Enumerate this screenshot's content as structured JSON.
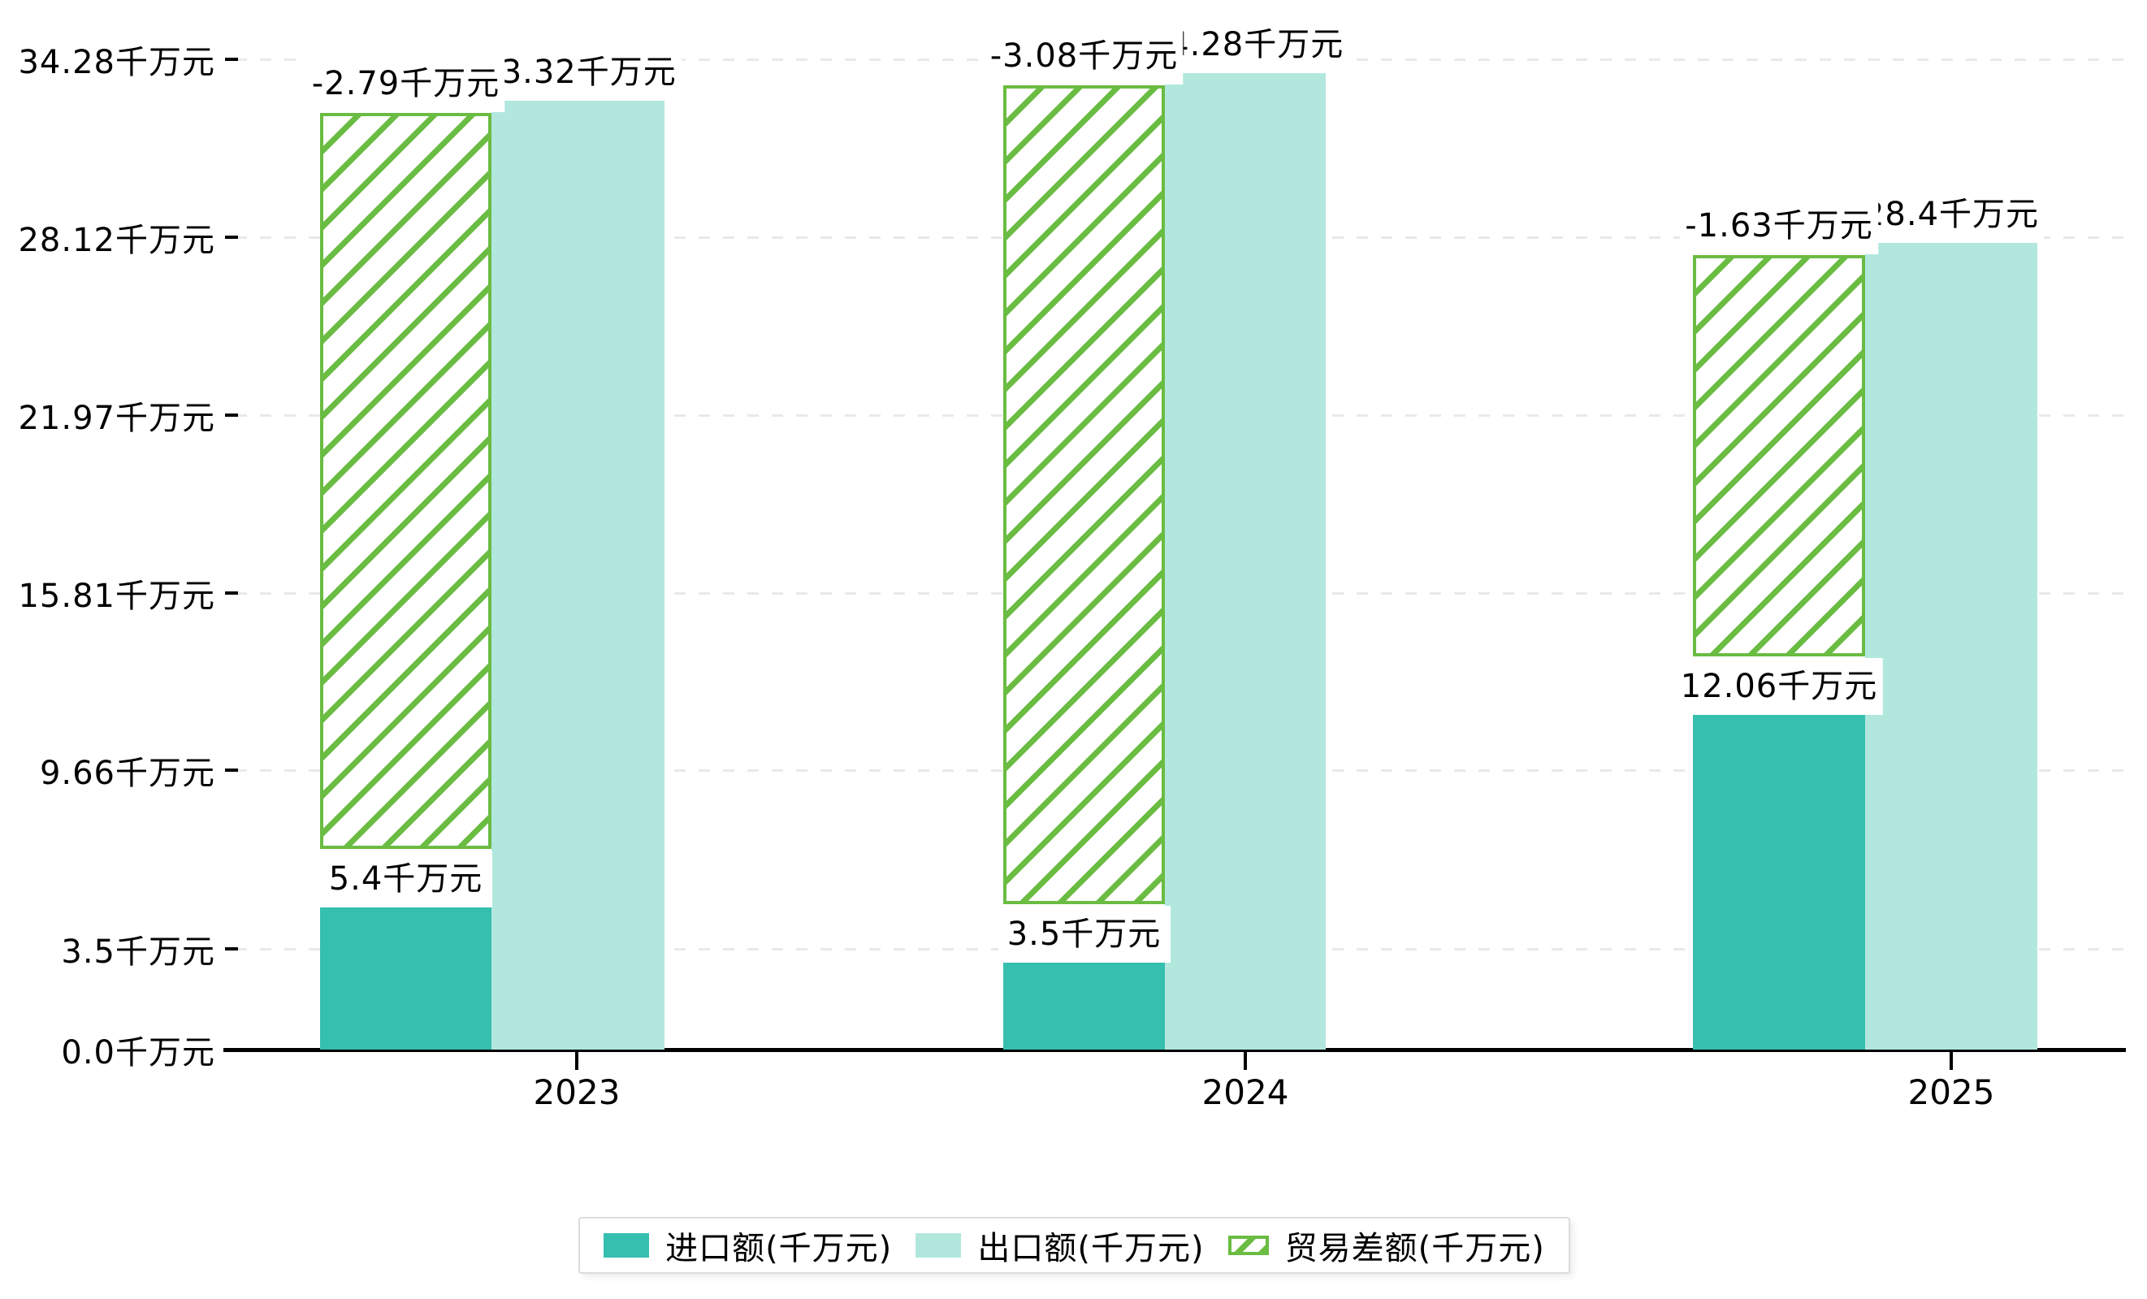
{
  "chart_data": {
    "type": "bar",
    "categories": [
      "2023",
      "2024",
      "2025"
    ],
    "unit": "千万元",
    "series": [
      {
        "name": "进口额(千万元)",
        "values": [
          5.4,
          3.5,
          12.06
        ],
        "labels": [
          "5.4千万元",
          "3.5千万元",
          "12.06千万元"
        ],
        "color": "#35bfae",
        "style": "solid"
      },
      {
        "name": "出口额(千万元)",
        "values": [
          33.32,
          34.28,
          28.4
        ],
        "labels": [
          "33.32千万元",
          "34.28千万元",
          "28.4千万元"
        ],
        "color": "#b2e7de",
        "style": "solid"
      },
      {
        "name": "贸易差额(千万元)",
        "values": [
          -2.79,
          -3.08,
          -1.63
        ],
        "labels": [
          "-2.79千万元",
          "-3.08千万元",
          "-1.63千万元"
        ],
        "color": "#6abc42",
        "style": "diagonal-hatch"
      }
    ],
    "y_axis": {
      "tick_labels": [
        "0.0千万元",
        "3.5千万元",
        "9.66千万元",
        "15.81千万元",
        "21.97千万元",
        "28.12千万元",
        "34.28千万元"
      ],
      "tick_values": [
        0.0,
        3.5,
        9.66,
        15.81,
        21.97,
        28.12,
        34.28
      ],
      "range": [
        0,
        34.28
      ]
    },
    "x_axis": {
      "tick_labels": [
        "2023",
        "2024",
        "2025"
      ]
    },
    "legend": {
      "position": "bottom-center",
      "items": [
        "进口额(千万元)",
        "出口额(千万元)",
        "贸易差额(千万元)"
      ]
    },
    "grid": {
      "horizontal": true,
      "style": "dashed",
      "color": "#e9e9e9"
    },
    "colors": {
      "import": "#35bfae",
      "export": "#b2e7de",
      "trade_hatch": "#6abc42",
      "axis": "#000000",
      "label_background": "#ffffff"
    }
  }
}
